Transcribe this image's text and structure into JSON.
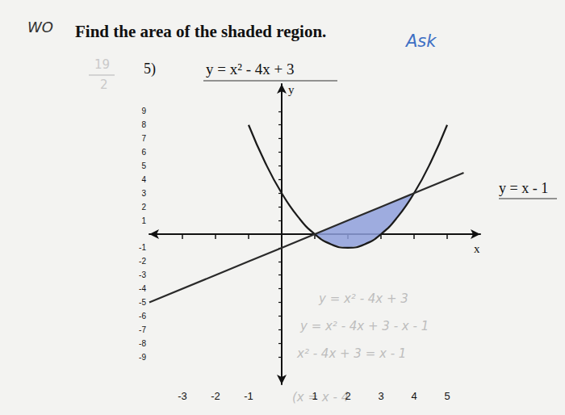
{
  "chart_data": {
    "type": "line",
    "title": "Find the area of the shaded region.",
    "problem_number": "5)",
    "x_label": "x",
    "y_label": "y",
    "xlim": [
      -4,
      6
    ],
    "ylim": [
      -11,
      11
    ],
    "xticks": [
      -3,
      -2,
      -1,
      1,
      2,
      3,
      4,
      5
    ],
    "yticks": [
      -9,
      -8,
      -7,
      -6,
      -5,
      -4,
      -3,
      -2,
      -1,
      1,
      2,
      3,
      4,
      5,
      6,
      7,
      8,
      9
    ],
    "grid": false,
    "series": [
      {
        "name": "y = x² - 4x + 3",
        "color": "#1a1a1a",
        "line_style": "solid",
        "x": [
          -1,
          -0.5,
          0,
          0.5,
          1,
          1.5,
          2,
          2.5,
          3,
          3.5,
          4,
          4.5,
          5
        ],
        "values": [
          8,
          5.25,
          3,
          1.25,
          0,
          -0.75,
          -1,
          -0.75,
          0,
          1.25,
          3,
          5.25,
          8
        ]
      },
      {
        "name": "y = x - 1",
        "color": "#2a2a2a",
        "line_style": "solid",
        "x": [
          -4,
          -2,
          0,
          2,
          4,
          5.5
        ],
        "values": [
          -5,
          -3,
          -1,
          1,
          3,
          4.5
        ]
      }
    ],
    "shaded_region": {
      "color": "#8e9fdc",
      "x": [
        1,
        1.5,
        2,
        2.5,
        3,
        3.5,
        4
      ],
      "lower": [
        0,
        -0.75,
        -1,
        -0.75,
        0,
        1.25,
        3
      ],
      "upper": [
        0,
        0.5,
        1,
        1.5,
        2,
        2.5,
        3
      ]
    },
    "annotations": {
      "corner_note": "WO",
      "margin_note": "Ask",
      "score_numerator": "19",
      "score_denominator": "2",
      "handwritten_work": [
        "y = x² - 4x + 3",
        "y = x² - 4x + 3 - x - 1",
        "x² - 4x + 3 = x - 1",
        "(x = x - 4"
      ]
    }
  }
}
